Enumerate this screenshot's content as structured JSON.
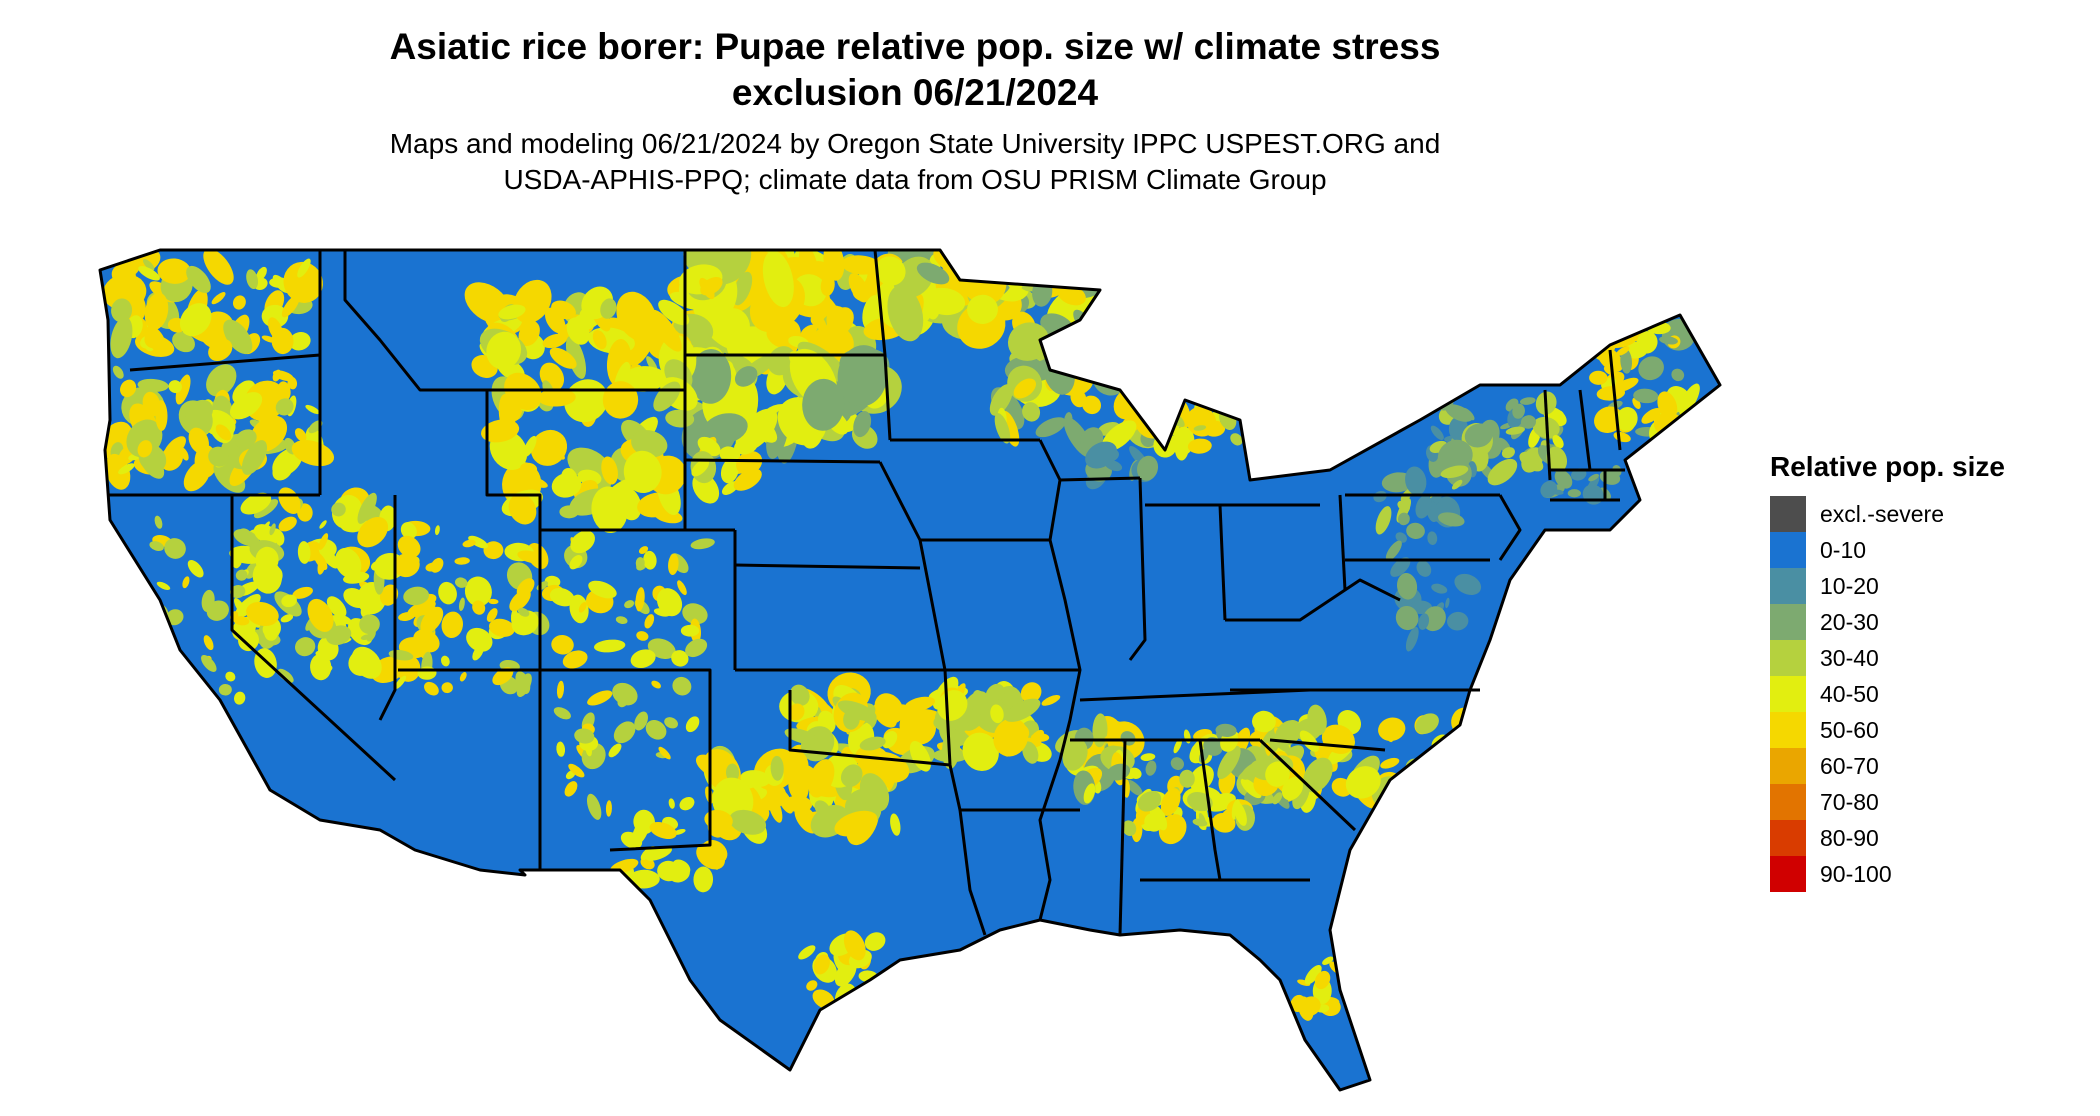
{
  "title": {
    "line1": "Asiatic rice borer: Pupae relative pop. size w/ climate stress",
    "line2": "exclusion 06/21/2024"
  },
  "subtitle": {
    "line1": "Maps and modeling 06/21/2024 by Oregon State University IPPC USPEST.ORG and",
    "line2": "USDA-APHIS-PPQ; climate data from OSU PRISM Climate Group"
  },
  "legend": {
    "title": "Relative pop. size",
    "items": [
      {
        "label": "excl.-severe",
        "color": "#4d4d4d"
      },
      {
        "label": "0-10",
        "color": "#1a73d1"
      },
      {
        "label": "10-20",
        "color": "#4a8fa3"
      },
      {
        "label": "20-30",
        "color": "#7daa70"
      },
      {
        "label": "30-40",
        "color": "#b5d13e"
      },
      {
        "label": "40-50",
        "color": "#e2ee10"
      },
      {
        "label": "50-60",
        "color": "#f5d800"
      },
      {
        "label": "60-70",
        "color": "#eaa600"
      },
      {
        "label": "70-80",
        "color": "#e27400"
      },
      {
        "label": "80-90",
        "color": "#d93c00"
      },
      {
        "label": "90-100",
        "color": "#d00000"
      }
    ]
  },
  "colors": {
    "base": "#1a73d1",
    "border": "#000000",
    "water": "#ffffff"
  }
}
